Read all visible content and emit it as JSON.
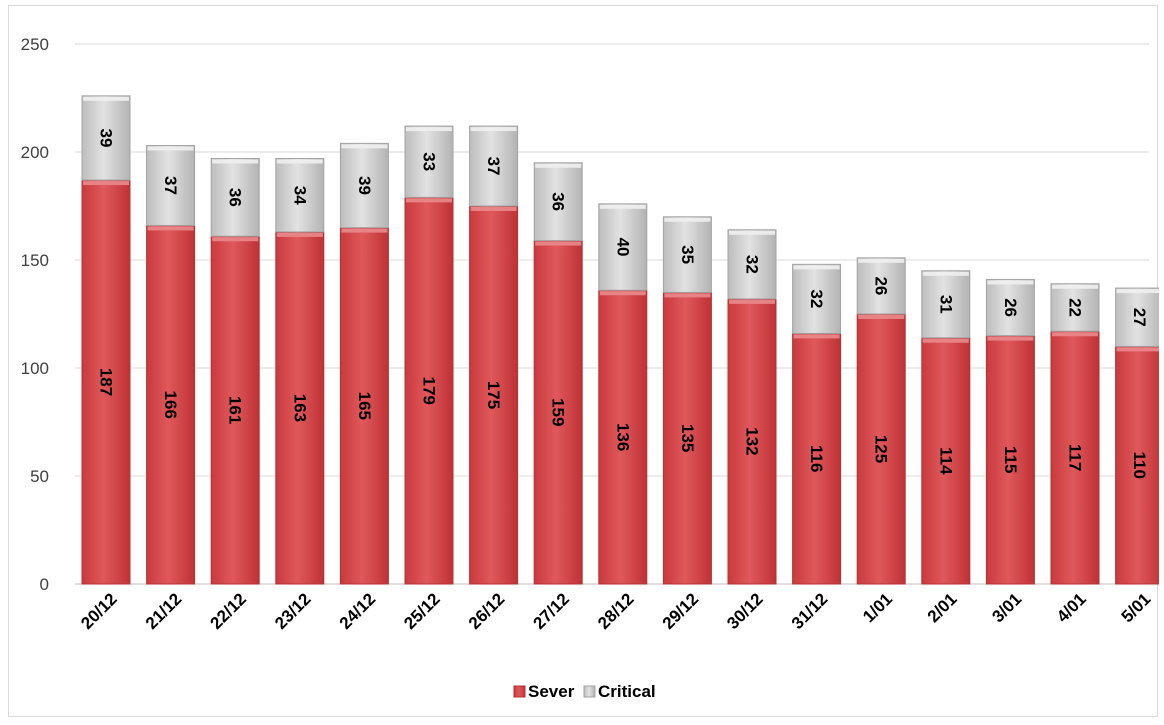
{
  "chart_data": {
    "type": "bar",
    "stacked": true,
    "categories": [
      "20/12",
      "21/12",
      "22/12",
      "23/12",
      "24/12",
      "25/12",
      "26/12",
      "27/12",
      "28/12",
      "29/12",
      "30/12",
      "31/12",
      "1/01",
      "2/01",
      "3/01",
      "4/01",
      "5/01"
    ],
    "series": [
      {
        "name": "Sever",
        "color": "#d9474a",
        "values": [
          187,
          166,
          161,
          163,
          165,
          179,
          175,
          159,
          136,
          135,
          132,
          116,
          125,
          114,
          115,
          117,
          110
        ]
      },
      {
        "name": "Critical",
        "color": "#c8c8c8",
        "values": [
          39,
          37,
          36,
          34,
          39,
          33,
          37,
          36,
          40,
          35,
          32,
          32,
          26,
          31,
          26,
          22,
          27
        ]
      }
    ],
    "ylim": [
      0,
      250
    ],
    "yticks": [
      0,
      50,
      100,
      150,
      200,
      250
    ],
    "grid": true,
    "legend": "bottom",
    "data_labels": true,
    "title": "",
    "xlabel": "",
    "ylabel": ""
  }
}
